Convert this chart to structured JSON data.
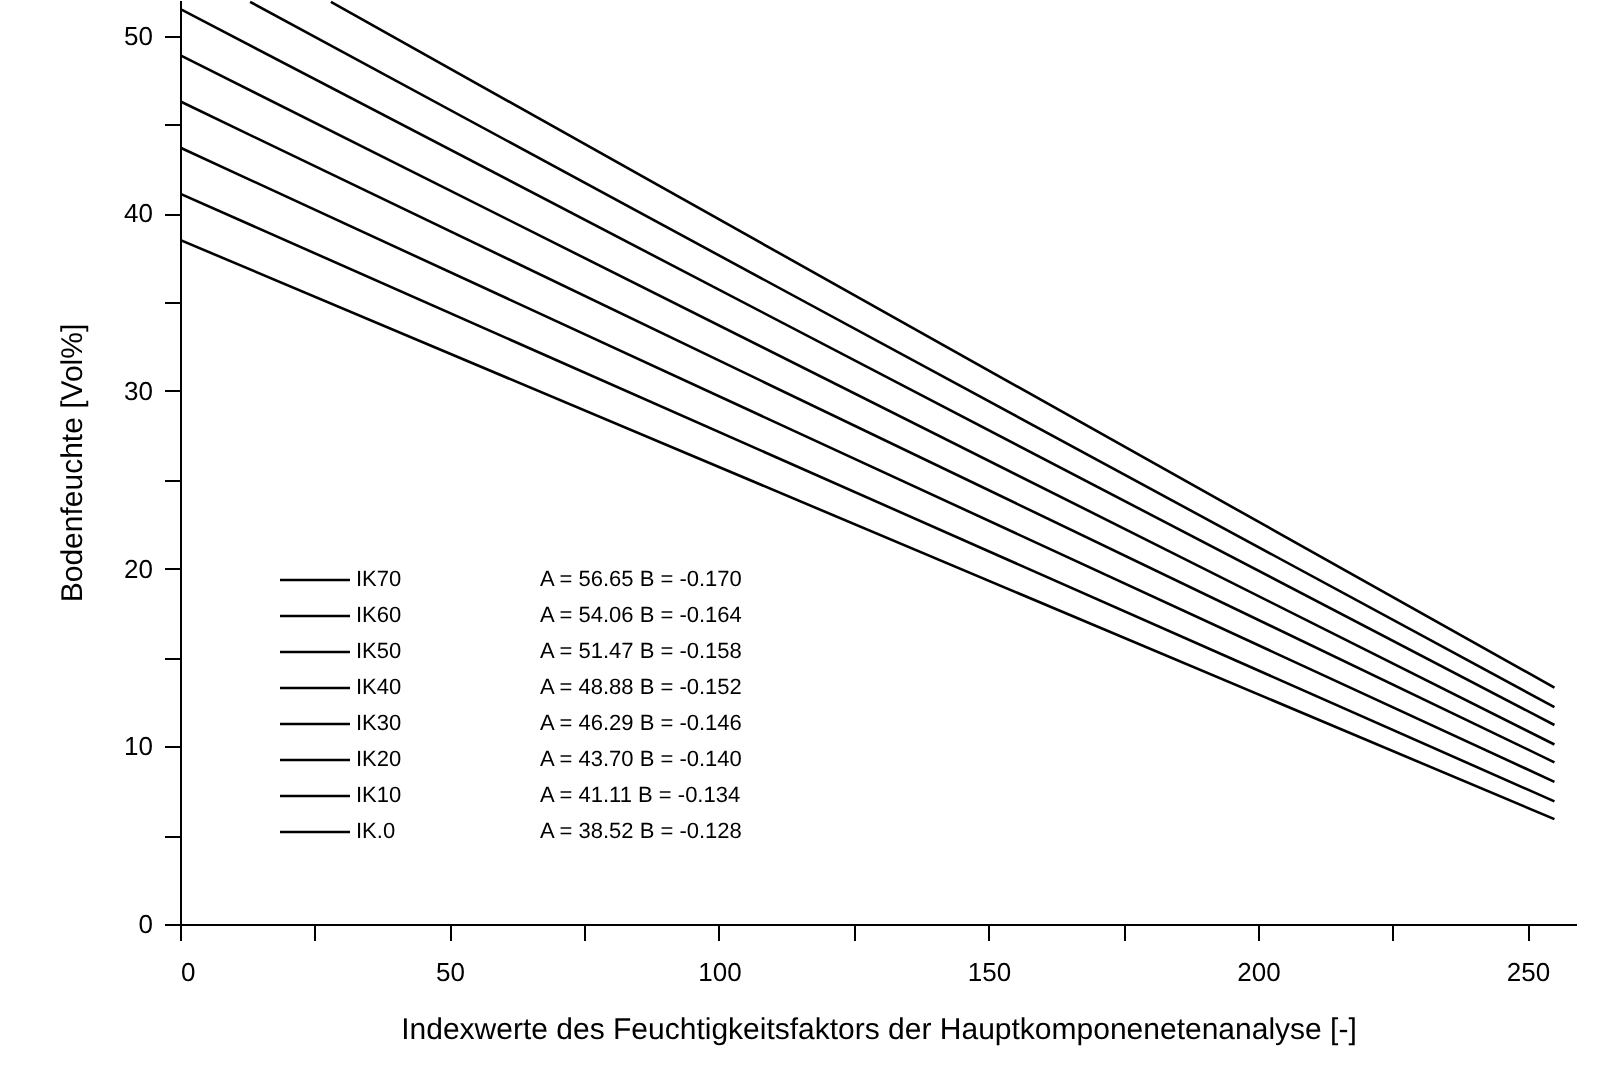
{
  "chart_data": {
    "type": "line",
    "xlabel": "Indexwerte des Feuchtigkeitsfaktors der Hauptkomponenetenanalyse [-]",
    "ylabel": "Bodenfeuchte [Vol%]",
    "xlim": [
      0,
      259
    ],
    "ylim": [
      0,
      52
    ],
    "xticks": [
      0,
      {
        "value": 25,
        "label": null
      },
      50,
      {
        "value": 75,
        "label": null
      },
      100,
      {
        "value": 125,
        "label": null
      },
      150,
      {
        "value": 175,
        "label": null
      },
      200,
      {
        "value": 225,
        "label": null
      },
      250
    ],
    "yticks": [
      0,
      {
        "value": 5,
        "label": null
      },
      10,
      {
        "value": 15,
        "label": null
      },
      20,
      {
        "value": 25,
        "label": null
      },
      30,
      {
        "value": 35,
        "label": null
      },
      40,
      {
        "value": 45,
        "label": null
      },
      50
    ],
    "grid": false,
    "legend": "bottom left",
    "marker": "none",
    "line_style": "solid",
    "series": [
      {
        "name": "IK70",
        "color": "#000000",
        "x": [
          28,
          255
        ],
        "values": [
          51.9,
          13.3
        ]
      },
      {
        "name": "IK60",
        "color": "#000000",
        "x": [
          13,
          255
        ],
        "values": [
          51.9,
          12.2
        ]
      },
      {
        "name": "IK50",
        "color": "#000000",
        "x": [
          0,
          255
        ],
        "values": [
          51.5,
          11.2
        ]
      },
      {
        "name": "IK40",
        "color": "#000000",
        "x": [
          0,
          255
        ],
        "values": [
          48.9,
          10.1
        ]
      },
      {
        "name": "IK30",
        "color": "#000000",
        "x": [
          0,
          255
        ],
        "values": [
          46.3,
          9.1
        ]
      },
      {
        "name": "IK20",
        "color": "#000000",
        "x": [
          0,
          255
        ],
        "values": [
          43.7,
          8.0
        ]
      },
      {
        "name": "IK10",
        "color": "#000000",
        "x": [
          0,
          255
        ],
        "values": [
          41.1,
          6.9
        ]
      },
      {
        "name": "IK.0",
        "color": "#000000",
        "x": [
          0,
          255
        ],
        "values": [
          38.5,
          5.9
        ]
      }
    ],
    "annotations": [
      "A = 56.65 B = -0.170",
      "A = 54.06 B = -0.164",
      "A = 51.47 B = -0.158",
      "A = 48.88 B = -0.152",
      "A = 46.29 B = -0.146",
      "A = 43.70 B = -0.140",
      "A = 41.11 B = -0.134",
      "A = 38.52 B = -0.128"
    ]
  }
}
